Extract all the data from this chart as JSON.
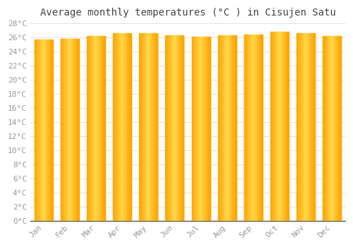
{
  "title": "Average monthly temperatures (°C ) in Cisujen Satu",
  "months": [
    "Jan",
    "Feb",
    "Mar",
    "Apr",
    "May",
    "Jun",
    "Jul",
    "Aug",
    "Sep",
    "Oct",
    "Nov",
    "Dec"
  ],
  "temperatures": [
    25.7,
    25.8,
    26.2,
    26.6,
    26.6,
    26.3,
    26.1,
    26.3,
    26.4,
    26.8,
    26.6,
    26.2
  ],
  "bar_color_center": "#FFD84D",
  "bar_color_edge": "#FFA500",
  "background_color": "#FFFFFF",
  "grid_color": "#E0E0E0",
  "ylim_min": 0,
  "ylim_max": 28,
  "ytick_step": 2,
  "title_fontsize": 10,
  "tick_fontsize": 8,
  "font_family": "monospace",
  "label_color": "#999999",
  "title_color": "#444444",
  "bar_width": 0.7,
  "n_gradient_cols": 40
}
